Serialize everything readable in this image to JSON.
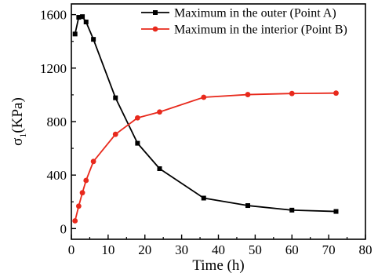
{
  "chart_data": {
    "type": "line",
    "title": "",
    "xlabel": "Time (h)",
    "ylabel": {
      "symbol": "σ",
      "subscript": "1",
      "unit": "(KPa)"
    },
    "xlim": [
      0,
      80
    ],
    "ylim": [
      -80,
      1680
    ],
    "xticks": [
      0,
      10,
      20,
      30,
      40,
      50,
      60,
      70,
      80
    ],
    "yticks": [
      0,
      400,
      800,
      1200,
      1600
    ],
    "grid": false,
    "legend_position": "top-right",
    "series": [
      {
        "name": "Maximum in the outer (Point A)",
        "color": "#000000",
        "marker": "square",
        "x": [
          1,
          2,
          3,
          4,
          6,
          12,
          18,
          24,
          36,
          48,
          60,
          72
        ],
        "y": [
          1455,
          1580,
          1585,
          1545,
          1415,
          978,
          638,
          448,
          228,
          172,
          138,
          128
        ]
      },
      {
        "name": "Maximum in the interior (Point B)",
        "color": "#e8291c",
        "marker": "circle",
        "x": [
          1,
          2,
          3,
          4,
          6,
          12,
          18,
          24,
          36,
          48,
          60,
          72
        ],
        "y": [
          58,
          168,
          268,
          360,
          502,
          705,
          828,
          872,
          982,
          1002,
          1010,
          1013
        ]
      }
    ]
  }
}
